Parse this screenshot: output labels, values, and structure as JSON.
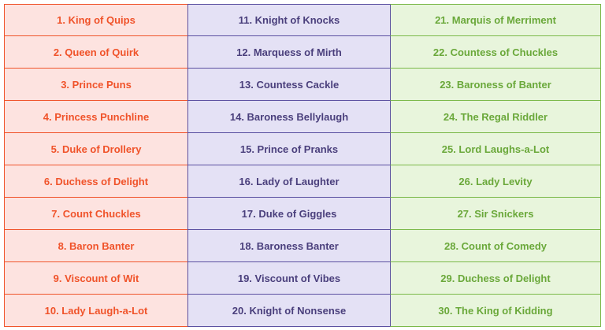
{
  "columns": [
    {
      "color": "#f0532a",
      "items": [
        "1. King of Quips",
        "2. Queen of Quirk",
        "3. Prince Puns",
        "4. Princess Punchline",
        "5. Duke of Drollery",
        "6. Duchess of Delight",
        "7. Count Chuckles",
        "8. Baron Banter",
        "9. Viscount of Wit",
        "10. Lady Laugh-a-Lot"
      ]
    },
    {
      "color": "#4a3f7c",
      "items": [
        "11. Knight of Knocks",
        "12. Marquess of Mirth",
        "13. Countess Cackle",
        "14. Baroness Bellylaugh",
        "15. Prince of Pranks",
        "16. Lady of Laughter",
        "17. Duke of Giggles",
        "18. Baroness Banter",
        "19. Viscount of Vibes",
        "20. Knight of Nonsense"
      ]
    },
    {
      "color": "#6aa83a",
      "items": [
        "21. Marquis of Merriment",
        "22. Countess of Chuckles",
        "23. Baroness of Banter",
        "24. The Regal Riddler",
        "25. Lord Laughs-a-Lot",
        "26. Lady Levity",
        "27. Sir Snickers",
        "28. Count of Comedy",
        "29. Duchess of Delight",
        "30. The King of Kidding"
      ]
    }
  ]
}
